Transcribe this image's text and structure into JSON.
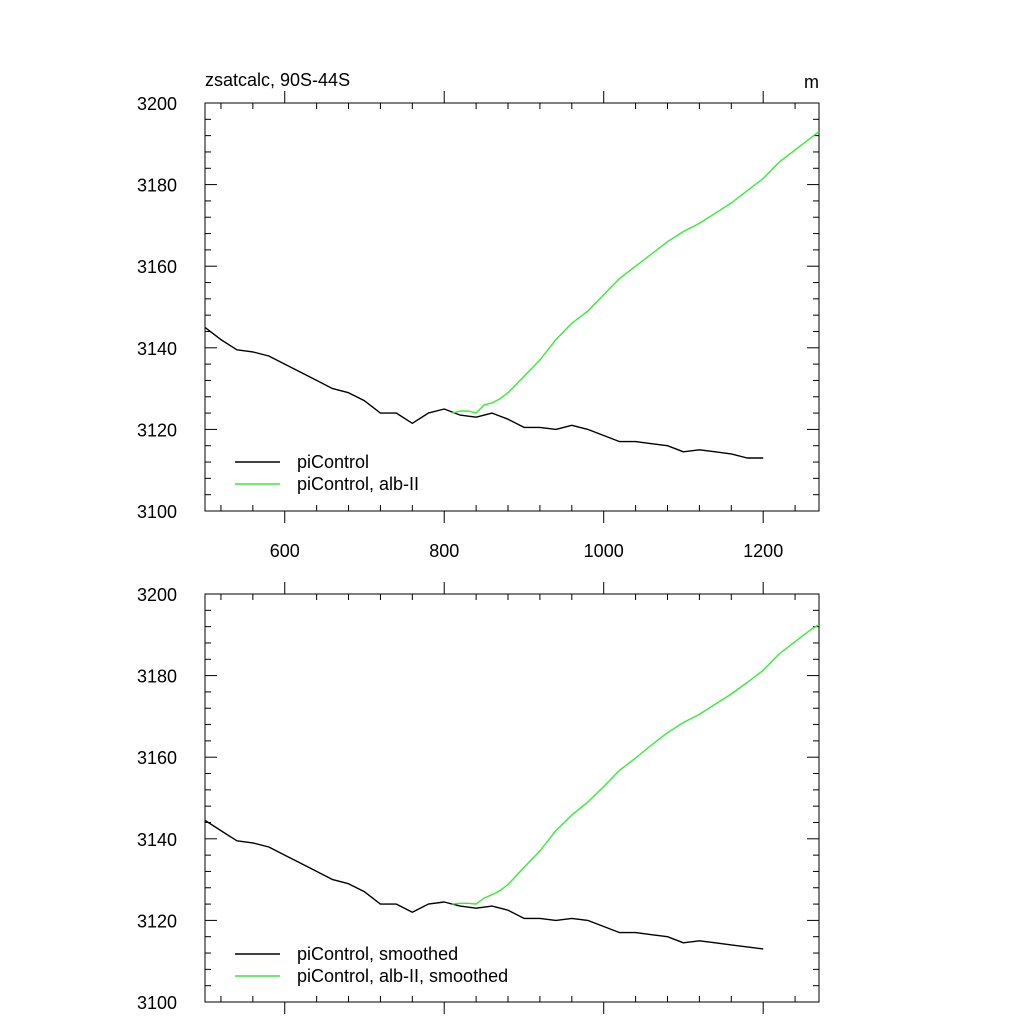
{
  "chart_data": [
    {
      "type": "line",
      "title": "zsatcalc, 90S-44S",
      "units": "m",
      "xlim": [
        500,
        1270
      ],
      "ylim": [
        3100,
        3200
      ],
      "xticks": [
        600,
        800,
        1000,
        1200
      ],
      "yticks": [
        3100,
        3120,
        3140,
        3160,
        3180,
        3200
      ],
      "xtick_labels": [
        "600",
        "800",
        "1000",
        "1200"
      ],
      "ytick_labels": [
        "3100",
        "3120",
        "3140",
        "3160",
        "3180",
        "3200"
      ],
      "legend_position": "bottom-left",
      "series": [
        {
          "name": "piControl",
          "color": "#000000",
          "x": [
            500,
            520,
            540,
            560,
            580,
            600,
            620,
            640,
            660,
            680,
            700,
            720,
            740,
            760,
            780,
            800,
            820,
            840,
            860,
            880,
            900,
            920,
            940,
            960,
            980,
            1000,
            1020,
            1040,
            1060,
            1080,
            1100,
            1120,
            1140,
            1160,
            1180,
            1200
          ],
          "y": [
            3145,
            3142,
            3139.5,
            3139,
            3138,
            3136,
            3134,
            3132,
            3130,
            3129,
            3127,
            3124,
            3124,
            3121.5,
            3124,
            3125,
            3123.5,
            3123,
            3124,
            3122.5,
            3120.5,
            3120.5,
            3120,
            3121,
            3120,
            3118.5,
            3117,
            3117,
            3116.5,
            3116,
            3114.5,
            3115,
            3114.5,
            3114,
            3113,
            3113
          ]
        },
        {
          "name": "piControl, alb-II",
          "color": "#33ee33",
          "x": [
            810,
            820,
            830,
            840,
            850,
            860,
            870,
            880,
            900,
            920,
            940,
            960,
            980,
            1000,
            1020,
            1040,
            1060,
            1080,
            1100,
            1120,
            1140,
            1160,
            1180,
            1200,
            1220,
            1240,
            1260,
            1270
          ],
          "y": [
            3124,
            3124.5,
            3124.5,
            3124,
            3126,
            3126.5,
            3127.5,
            3129,
            3133,
            3137,
            3142,
            3146,
            3149,
            3153,
            3157,
            3160,
            3163,
            3166,
            3168.5,
            3170.5,
            3173,
            3175.5,
            3178.5,
            3181.5,
            3185.5,
            3188.5,
            3191.5,
            3193
          ]
        }
      ]
    },
    {
      "type": "line",
      "title": "",
      "units": "",
      "xlim": [
        500,
        1270
      ],
      "ylim": [
        3100,
        3200
      ],
      "xticks": [
        600,
        800,
        1000,
        1200
      ],
      "yticks": [
        3100,
        3120,
        3140,
        3160,
        3180,
        3200
      ],
      "xtick_labels": [],
      "ytick_labels": [
        "3100",
        "3120",
        "3140",
        "3160",
        "3180",
        "3200"
      ],
      "legend_position": "bottom-left",
      "series": [
        {
          "name": "piControl, smoothed",
          "color": "#000000",
          "x": [
            500,
            520,
            540,
            560,
            580,
            600,
            620,
            640,
            660,
            680,
            700,
            720,
            740,
            760,
            780,
            800,
            820,
            840,
            860,
            880,
            900,
            920,
            940,
            960,
            980,
            1000,
            1020,
            1040,
            1060,
            1080,
            1100,
            1120,
            1140,
            1160,
            1180,
            1200
          ],
          "y": [
            3144.5,
            3142,
            3139.5,
            3139,
            3138,
            3136,
            3134,
            3132,
            3130,
            3129,
            3127,
            3124,
            3124,
            3122,
            3124,
            3124.5,
            3123.5,
            3123,
            3123.5,
            3122.5,
            3120.5,
            3120.5,
            3120,
            3120.5,
            3120,
            3118.5,
            3117,
            3117,
            3116.5,
            3116,
            3114.5,
            3115,
            3114.5,
            3114,
            3113.5,
            3113
          ]
        },
        {
          "name": "piControl, alb-II, smoothed",
          "color": "#33ee33",
          "x": [
            810,
            820,
            830,
            840,
            850,
            860,
            870,
            880,
            900,
            920,
            940,
            960,
            980,
            1000,
            1020,
            1040,
            1060,
            1080,
            1100,
            1120,
            1140,
            1160,
            1180,
            1200,
            1220,
            1240,
            1260,
            1270
          ],
          "y": [
            3124,
            3124.2,
            3124.2,
            3124,
            3125.5,
            3126.3,
            3127.3,
            3128.8,
            3133,
            3137,
            3142,
            3145.8,
            3149,
            3152.8,
            3156.8,
            3159.8,
            3163,
            3166,
            3168.5,
            3170.5,
            3173,
            3175.5,
            3178.3,
            3181.3,
            3185.3,
            3188.3,
            3191.3,
            3192.5
          ]
        }
      ]
    }
  ]
}
